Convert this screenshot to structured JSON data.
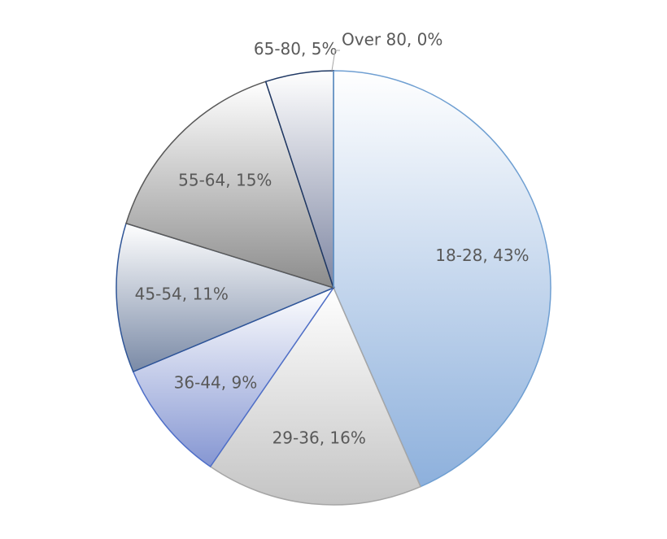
{
  "chart_data": {
    "type": "pie",
    "labels": [
      "18-28, 43%",
      "29-36, 16%",
      "36-44, 9%",
      "45-54, 11%",
      "55-64, 15%",
      "65-80, 5%",
      "Over 80, 0%"
    ],
    "values": [
      43,
      16,
      9,
      11,
      15,
      5,
      0
    ],
    "colors": [
      "#8db0dc",
      "#c4c4c4",
      "#8596d2",
      "#7a8aa6",
      "#8c8c8c",
      "#7e86a2",
      "#8db0dc"
    ],
    "stroke_colors": [
      "#6f9fd2",
      "#a6a6a6",
      "#4f6fc8",
      "#2f5597",
      "#595959",
      "#1f3864",
      "#6f9fd2"
    ]
  }
}
